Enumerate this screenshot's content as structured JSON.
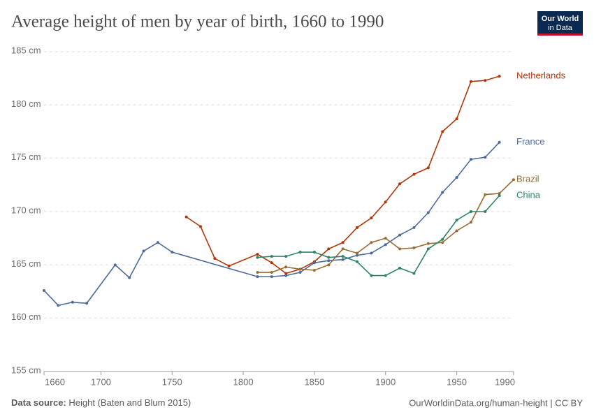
{
  "chart_data": {
    "type": "line",
    "title": "Average height of men by year of birth, 1660 to 1990",
    "xlim": [
      1660,
      1990
    ],
    "xticks": [
      1660,
      1700,
      1750,
      1800,
      1850,
      1900,
      1950,
      1990
    ],
    "ylim": [
      155,
      185
    ],
    "yticks": [
      {
        "value": 155,
        "label": "155 cm"
      },
      {
        "value": 160,
        "label": "160 cm"
      },
      {
        "value": 165,
        "label": "165 cm"
      },
      {
        "value": 170,
        "label": "170 cm"
      },
      {
        "value": 175,
        "label": "175 cm"
      },
      {
        "value": 180,
        "label": "180 cm"
      },
      {
        "value": 185,
        "label": "185 cm"
      }
    ],
    "grid": true,
    "series": [
      {
        "name": "Netherlands",
        "color": "#b13507",
        "x": [
          1760,
          1770,
          1780,
          1790,
          1810,
          1820,
          1830,
          1840,
          1850,
          1860,
          1870,
          1880,
          1890,
          1900,
          1910,
          1920,
          1930,
          1940,
          1950,
          1960,
          1970,
          1980
        ],
        "values": [
          169.5,
          168.6,
          165.6,
          164.9,
          166.0,
          165.2,
          164.2,
          164.6,
          165.3,
          166.5,
          167.1,
          168.5,
          169.4,
          170.9,
          172.6,
          173.5,
          174.1,
          177.5,
          178.7,
          182.2,
          182.3,
          182.7
        ]
      },
      {
        "name": "France",
        "color": "#4c6a9c",
        "x": [
          1660,
          1670,
          1680,
          1690,
          1710,
          1720,
          1730,
          1740,
          1750,
          1810,
          1820,
          1830,
          1840,
          1850,
          1860,
          1870,
          1880,
          1890,
          1900,
          1910,
          1920,
          1930,
          1940,
          1950,
          1960,
          1970,
          1980
        ],
        "values": [
          162.6,
          161.2,
          161.5,
          161.4,
          165.0,
          163.8,
          166.3,
          167.1,
          166.2,
          163.9,
          163.9,
          164.0,
          164.3,
          165.2,
          165.4,
          165.5,
          165.9,
          166.1,
          166.9,
          167.8,
          168.5,
          169.9,
          171.8,
          173.2,
          174.9,
          175.1,
          176.5
        ]
      },
      {
        "name": "Brazil",
        "color": "#9a6c36",
        "x": [
          1810,
          1820,
          1830,
          1840,
          1850,
          1860,
          1870,
          1880,
          1890,
          1900,
          1910,
          1920,
          1930,
          1940,
          1950,
          1960,
          1970,
          1980,
          1990
        ],
        "values": [
          164.3,
          164.3,
          164.8,
          164.6,
          164.5,
          165.0,
          166.5,
          166.1,
          167.1,
          167.5,
          166.5,
          166.6,
          167.0,
          167.1,
          168.2,
          169.0,
          171.6,
          171.7,
          173.0
        ]
      },
      {
        "name": "China",
        "color": "#2c8465",
        "x": [
          1810,
          1820,
          1830,
          1840,
          1850,
          1860,
          1870,
          1880,
          1890,
          1900,
          1910,
          1920,
          1930,
          1940,
          1950,
          1960,
          1970,
          1980
        ],
        "values": [
          165.7,
          165.8,
          165.8,
          166.2,
          166.2,
          165.7,
          165.8,
          165.3,
          164.0,
          164.0,
          164.7,
          164.2,
          166.5,
          167.4,
          169.2,
          170.0,
          170.0,
          171.5
        ]
      }
    ],
    "source_label": "Data source:",
    "source": "Height (Baten and Blum 2015)",
    "credit": "OurWorldinData.org/human-height | CC BY"
  },
  "logo": [
    "Our World",
    "in Data"
  ]
}
